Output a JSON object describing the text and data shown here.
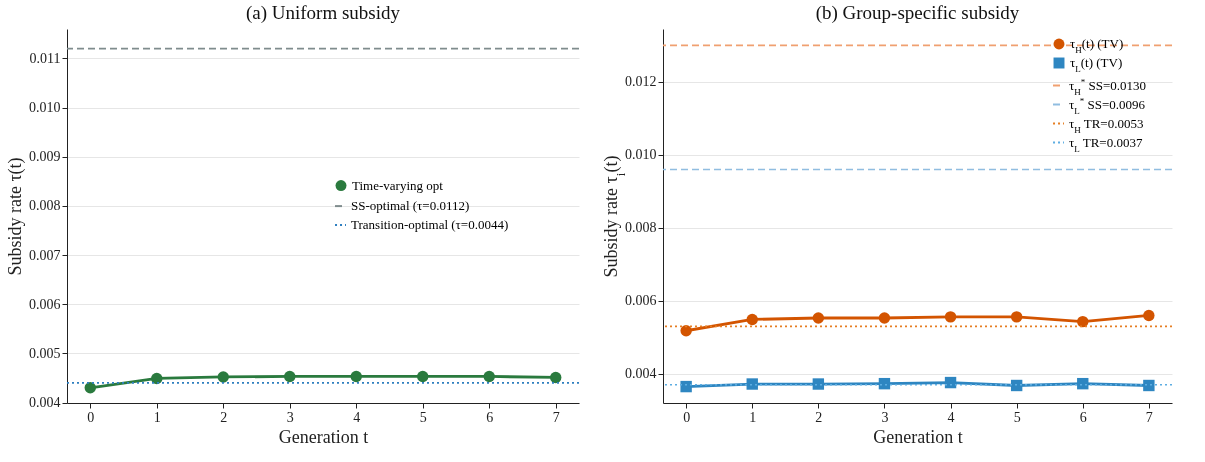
{
  "chart_data": [
    {
      "type": "line",
      "title": "(a) Uniform subsidy",
      "xlabel": "Generation t",
      "ylabel": "Subsidy rate τ(t)",
      "x": [
        0,
        1,
        2,
        3,
        4,
        5,
        6,
        7
      ],
      "xlim": [
        -0.35,
        7.35
      ],
      "xticks": [
        0,
        1,
        2,
        3,
        4,
        5,
        6,
        7
      ],
      "ylim": [
        0.00399,
        0.0116
      ],
      "yticks": [
        {
          "value": 0.004,
          "label": "0.004"
        },
        {
          "value": 0.005,
          "label": "0.005"
        },
        {
          "value": 0.006,
          "label": "0.006"
        },
        {
          "value": 0.007,
          "label": "0.007"
        },
        {
          "value": 0.008,
          "label": "0.008"
        },
        {
          "value": 0.009,
          "label": "0.009"
        },
        {
          "value": 0.01,
          "label": "0.010"
        },
        {
          "value": 0.011,
          "label": "0.011"
        }
      ],
      "grid": "y",
      "legend": "right",
      "series": [
        {
          "name": "Time-varying opt",
          "color": "#2a7a3e",
          "marker": "circle",
          "values": [
            0.0043,
            0.00449,
            0.00452,
            0.00453,
            0.00453,
            0.00453,
            0.00453,
            0.00451
          ]
        }
      ],
      "ref_lines": [
        {
          "axis": "y",
          "value": 0.0112,
          "label": "SS-optimal (τ=0.0112)",
          "color": "#7f8c8d",
          "line_style": "dashed"
        },
        {
          "axis": "y",
          "value": 0.0044,
          "label": "Transition-optimal (τ=0.0044)",
          "color": "#2e7fc0",
          "line_style": "dotted"
        }
      ]
    },
    {
      "type": "line",
      "title": "(b) Group-specific subsidy",
      "xlabel": "Generation t",
      "ylabel": "Subsidy rate τ$_{i}$(t)",
      "x": [
        0,
        1,
        2,
        3,
        4,
        5,
        6,
        7
      ],
      "xlim": [
        -0.35,
        7.35
      ],
      "xticks": [
        0,
        1,
        2,
        3,
        4,
        5,
        6,
        7
      ],
      "ylim": [
        0.0032,
        0.01345
      ],
      "yticks": [
        {
          "value": 0.004,
          "label": "0.004"
        },
        {
          "value": 0.006,
          "label": "0.006"
        },
        {
          "value": 0.008,
          "label": "0.008"
        },
        {
          "value": 0.01,
          "label": "0.010"
        },
        {
          "value": 0.012,
          "label": "0.012"
        }
      ],
      "grid": "y",
      "legend": "top right",
      "series": [
        {
          "name": "τ$_{H}$(t) (TV)",
          "color": "#d35400",
          "marker": "circle",
          "values": [
            0.00518,
            0.00549,
            0.00553,
            0.00553,
            0.00556,
            0.00556,
            0.00543,
            0.0056
          ]
        },
        {
          "name": "τ$_{L}$(t) (TV)",
          "color": "#2e86c1",
          "marker": "square",
          "values": [
            0.00365,
            0.00372,
            0.00372,
            0.00373,
            0.00376,
            0.00368,
            0.00373,
            0.00368
          ]
        }
      ],
      "ref_lines": [
        {
          "axis": "y",
          "value": 0.013,
          "label": "τ$_{H}$$^{*}$ SS=0.0130",
          "color": "#f0a070",
          "line_style": "dashed"
        },
        {
          "axis": "y",
          "value": 0.0096,
          "label": "τ$_{L}$$^{*}$ SS=0.0096",
          "color": "#90bde0",
          "line_style": "dashed"
        },
        {
          "axis": "y",
          "value": 0.0053,
          "label": "τ$_{H}$ TR=0.0053",
          "color": "#e67e22",
          "line_style": "dotted"
        },
        {
          "axis": "y",
          "value": 0.0037,
          "label": "τ$_{L}$ TR=0.0037",
          "color": "#5dade2",
          "line_style": "dotted"
        }
      ]
    }
  ]
}
